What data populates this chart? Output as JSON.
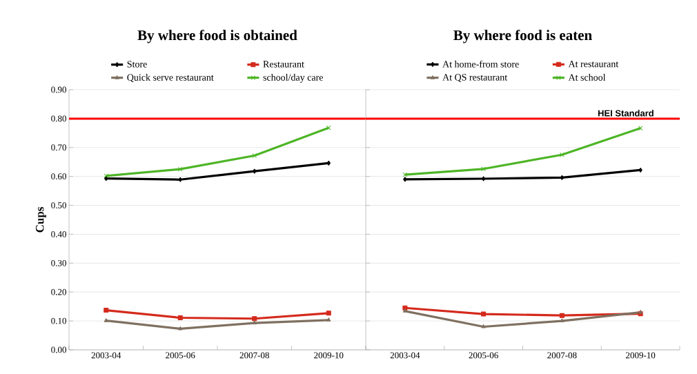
{
  "chart_data": [
    {
      "type": "line",
      "title": "By where food is obtained",
      "ylabel": "Cups",
      "categories": [
        "2003-04",
        "2005-06",
        "2007-08",
        "2009-10"
      ],
      "series": [
        {
          "name": "Store",
          "color": "#000000",
          "marker": "diamond",
          "values": [
            0.593,
            0.589,
            0.618,
            0.646
          ]
        },
        {
          "name": "Restaurant",
          "color": "#d42a1c",
          "marker": "square",
          "values": [
            0.137,
            0.111,
            0.108,
            0.127
          ]
        },
        {
          "name": "Quick serve restaurant",
          "color": "#7f7060",
          "marker": "triangle",
          "values": [
            0.101,
            0.073,
            0.093,
            0.103
          ]
        },
        {
          "name": "school/day care",
          "color": "#4db526",
          "marker": "cross",
          "values": [
            0.602,
            0.625,
            0.672,
            0.768
          ]
        }
      ],
      "ylim": [
        0,
        0.9
      ],
      "yticks": [
        {
          "value": 0,
          "label": "0.00"
        },
        {
          "value": 0.1,
          "label": "0.10"
        },
        {
          "value": 0.2,
          "label": "0.20"
        },
        {
          "value": 0.3,
          "label": "0.30"
        },
        {
          "value": 0.4,
          "label": "0.40"
        },
        {
          "value": 0.5,
          "label": "0.50"
        },
        {
          "value": 0.6,
          "label": "0.60"
        },
        {
          "value": 0.7,
          "label": "0.70"
        },
        {
          "value": 0.8,
          "label": "0.80"
        },
        {
          "value": 0.9,
          "label": "0.90"
        }
      ],
      "ref_lines": [
        {
          "axis": "y",
          "value": 0.8,
          "color": "#ff0000"
        }
      ],
      "grid": "y",
      "legend": "top"
    },
    {
      "type": "line",
      "title": "By where food is eaten",
      "categories": [
        "2003-04",
        "2005-06",
        "2007-08",
        "2009-10"
      ],
      "series": [
        {
          "name": "At home-from store",
          "color": "#000000",
          "marker": "diamond",
          "values": [
            0.59,
            0.592,
            0.596,
            0.622
          ]
        },
        {
          "name": "At restaurant",
          "color": "#d42a1c",
          "marker": "square",
          "values": [
            0.145,
            0.124,
            0.119,
            0.125
          ]
        },
        {
          "name": "At QS restaurant",
          "color": "#7f7060",
          "marker": "triangle",
          "values": [
            0.134,
            0.08,
            0.1,
            0.13
          ]
        },
        {
          "name": "At school",
          "color": "#4db526",
          "marker": "cross",
          "values": [
            0.606,
            0.626,
            0.675,
            0.767
          ]
        }
      ],
      "ylim": [
        0,
        0.9
      ],
      "yticks": [
        0,
        0.1,
        0.2,
        0.3,
        0.4,
        0.5,
        0.6,
        0.7,
        0.8,
        0.9
      ],
      "ref_lines": [
        {
          "axis": "y",
          "value": 0.8,
          "label": "HEI Standard",
          "color": "#ff0000"
        }
      ],
      "grid": "y",
      "legend": "top",
      "tick_labels": "x"
    }
  ]
}
